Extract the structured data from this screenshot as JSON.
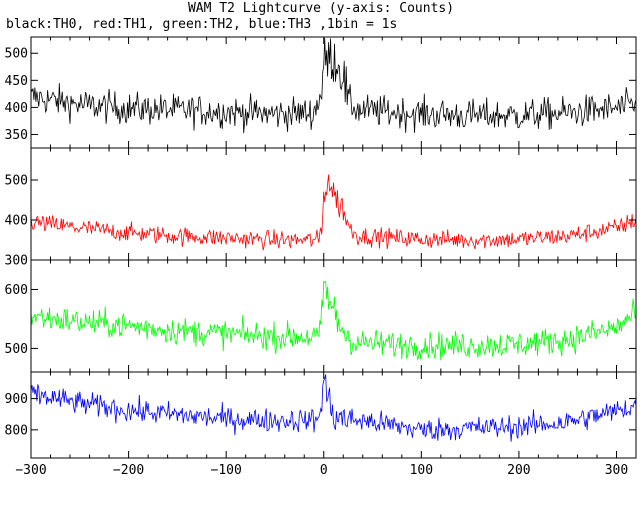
{
  "header": {
    "title": "WAM T2 Lightcurve (y-axis: Counts)",
    "subtitle": "black:TH0, red:TH1, green:TH2, blue:TH3 ,1bin = 1s"
  },
  "chart_data": {
    "type": "line",
    "title": "WAM T2 Lightcurve (y-axis: Counts)",
    "subtitle": "black:TH0, red:TH1, green:TH2, blue:TH3 ,1bin = 1s",
    "xlabel": "",
    "ylabel": "Counts",
    "xlim": [
      -300,
      320
    ],
    "x_ticks": [
      -300,
      -200,
      -100,
      0,
      100,
      200,
      300
    ],
    "x_step": 1,
    "grid": false,
    "legend": "none",
    "panels": [
      {
        "name": "TH0",
        "color": "#000000",
        "ylim": [
          325,
          530
        ],
        "y_ticks": [
          350,
          400,
          450,
          500
        ],
        "profile": [
          [
            -300,
            420
          ],
          [
            -250,
            405
          ],
          [
            -200,
            398
          ],
          [
            -150,
            395
          ],
          [
            -100,
            392
          ],
          [
            -50,
            388
          ],
          [
            -10,
            390
          ],
          [
            -2,
            430
          ],
          [
            0,
            480
          ],
          [
            5,
            492
          ],
          [
            12,
            488
          ],
          [
            20,
            460
          ],
          [
            25,
            410
          ],
          [
            35,
            395
          ],
          [
            100,
            388
          ],
          [
            150,
            385
          ],
          [
            200,
            385
          ],
          [
            250,
            390
          ],
          [
            300,
            398
          ],
          [
            320,
            405
          ]
        ],
        "noise": 28
      },
      {
        "name": "TH1",
        "color": "#ff0000",
        "ylim": [
          300,
          580
        ],
        "y_ticks": [
          300,
          400,
          500
        ],
        "profile": [
          [
            -300,
            395
          ],
          [
            -250,
            380
          ],
          [
            -200,
            368
          ],
          [
            -150,
            360
          ],
          [
            -100,
            355
          ],
          [
            -50,
            350
          ],
          [
            -5,
            350
          ],
          [
            -2,
            380
          ],
          [
            0,
            460
          ],
          [
            4,
            500
          ],
          [
            10,
            470
          ],
          [
            15,
            440
          ],
          [
            20,
            430
          ],
          [
            25,
            385
          ],
          [
            35,
            360
          ],
          [
            100,
            352
          ],
          [
            150,
            350
          ],
          [
            200,
            352
          ],
          [
            250,
            360
          ],
          [
            300,
            380
          ],
          [
            320,
            400
          ]
        ],
        "noise": 22
      },
      {
        "name": "TH2",
        "color": "#00ff00",
        "ylim": [
          460,
          650
        ],
        "y_ticks": [
          500,
          600
        ],
        "profile": [
          [
            -300,
            555
          ],
          [
            -250,
            545
          ],
          [
            -200,
            538
          ],
          [
            -150,
            530
          ],
          [
            -100,
            525
          ],
          [
            -50,
            520
          ],
          [
            -5,
            520
          ],
          [
            -2,
            545
          ],
          [
            0,
            610
          ],
          [
            4,
            590
          ],
          [
            10,
            560
          ],
          [
            18,
            535
          ],
          [
            30,
            510
          ],
          [
            100,
            505
          ],
          [
            150,
            505
          ],
          [
            200,
            507
          ],
          [
            250,
            515
          ],
          [
            300,
            535
          ],
          [
            320,
            560
          ]
        ],
        "noise": 22
      },
      {
        "name": "TH3",
        "color": "#0000ff",
        "ylim": [
          710,
          985
        ],
        "y_ticks": [
          800,
          900
        ],
        "profile": [
          [
            -300,
            915
          ],
          [
            -250,
            885
          ],
          [
            -200,
            862
          ],
          [
            -150,
            848
          ],
          [
            -100,
            835
          ],
          [
            -50,
            830
          ],
          [
            -5,
            832
          ],
          [
            0,
            960
          ],
          [
            4,
            900
          ],
          [
            12,
            840
          ],
          [
            50,
            825
          ],
          [
            100,
            800
          ],
          [
            150,
            805
          ],
          [
            200,
            810
          ],
          [
            250,
            825
          ],
          [
            300,
            860
          ],
          [
            320,
            880
          ]
        ],
        "noise": 36
      }
    ]
  }
}
